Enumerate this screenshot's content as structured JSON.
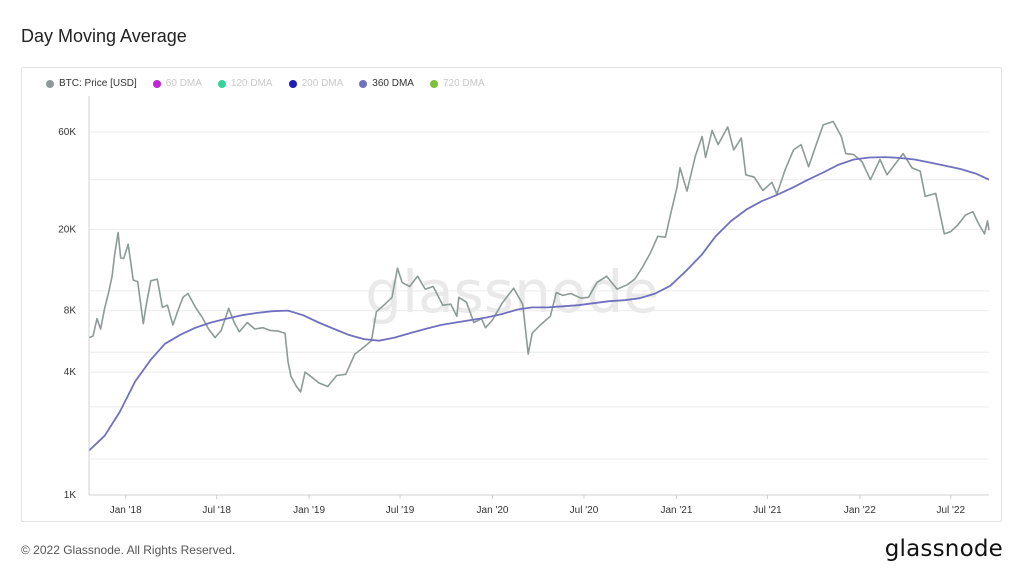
{
  "page": {
    "title": "Day Moving Average",
    "copyright": "© 2022 Glassnode. All Rights Reserved.",
    "logo": "glassnode",
    "watermark": "glassnode"
  },
  "colors": {
    "price": "#8c9a98",
    "dma60": "#c026d3",
    "dma120": "#34d399",
    "dma200": "#1d1dbf",
    "dma360": "#7070c0",
    "dma720": "#7cbf3a",
    "grid": "#ececec"
  },
  "legend": [
    {
      "label": "BTC: Price [USD]",
      "color": "#8c9a98",
      "active": true
    },
    {
      "label": "60 DMA",
      "color": "#c026d3",
      "active": false
    },
    {
      "label": "120 DMA",
      "color": "#34d399",
      "active": false
    },
    {
      "label": "200 DMA",
      "color": "#1d1dbf",
      "active": false
    },
    {
      "label": "360 DMA",
      "color": "#7070c0",
      "active": true
    },
    {
      "label": "720 DMA",
      "color": "#7cbf3a",
      "active": false
    }
  ],
  "chart_data": {
    "type": "line",
    "title": "Day Moving Average",
    "y_scale": "log",
    "ylim": [
      1000,
      90000
    ],
    "xlim": [
      "2017-10-20",
      "2022-09-15"
    ],
    "grid": true,
    "legend_position": "top-left",
    "y_ticks": [
      {
        "value": 1000,
        "label": "1K"
      },
      {
        "value": 4000,
        "label": "4K"
      },
      {
        "value": 8000,
        "label": "8K"
      },
      {
        "value": 20000,
        "label": "20K"
      },
      {
        "value": 60000,
        "label": "60K"
      }
    ],
    "y_grid_values": [
      1500,
      2700,
      5000,
      10000,
      35000
    ],
    "x_ticks": [
      {
        "date": "2018-01-01",
        "label": "Jan '18"
      },
      {
        "date": "2018-07-01",
        "label": "Jul '18"
      },
      {
        "date": "2019-01-01",
        "label": "Jan '19"
      },
      {
        "date": "2019-07-01",
        "label": "Jul '19"
      },
      {
        "date": "2020-01-01",
        "label": "Jan '20"
      },
      {
        "date": "2020-07-01",
        "label": "Jul '20"
      },
      {
        "date": "2021-01-01",
        "label": "Jan '21"
      },
      {
        "date": "2021-07-01",
        "label": "Jul '21"
      },
      {
        "date": "2022-01-01",
        "label": "Jan '22"
      },
      {
        "date": "2022-07-01",
        "label": "Jul '22"
      }
    ],
    "series": [
      {
        "name": "BTC: Price [USD]",
        "color": "#8c9a98",
        "points": [
          [
            "2017-10-20",
            5900
          ],
          [
            "2017-10-28",
            6000
          ],
          [
            "2017-11-05",
            7300
          ],
          [
            "2017-11-12",
            6500
          ],
          [
            "2017-11-20",
            8200
          ],
          [
            "2017-11-28",
            9800
          ],
          [
            "2017-12-05",
            11800
          ],
          [
            "2017-12-10",
            15000
          ],
          [
            "2017-12-17",
            19300
          ],
          [
            "2017-12-22",
            14500
          ],
          [
            "2017-12-28",
            14400
          ],
          [
            "2018-01-06",
            16900
          ],
          [
            "2018-01-16",
            11300
          ],
          [
            "2018-01-25",
            11100
          ],
          [
            "2018-02-05",
            6900
          ],
          [
            "2018-02-10",
            8300
          ],
          [
            "2018-02-20",
            11200
          ],
          [
            "2018-03-05",
            11400
          ],
          [
            "2018-03-15",
            8300
          ],
          [
            "2018-03-25",
            8500
          ],
          [
            "2018-04-05",
            6800
          ],
          [
            "2018-04-15",
            8000
          ],
          [
            "2018-04-25",
            9300
          ],
          [
            "2018-05-05",
            9700
          ],
          [
            "2018-05-20",
            8300
          ],
          [
            "2018-06-01",
            7500
          ],
          [
            "2018-06-15",
            6500
          ],
          [
            "2018-06-28",
            5900
          ],
          [
            "2018-07-10",
            6400
          ],
          [
            "2018-07-25",
            8200
          ],
          [
            "2018-08-05",
            7000
          ],
          [
            "2018-08-15",
            6300
          ],
          [
            "2018-08-31",
            7000
          ],
          [
            "2018-09-15",
            6500
          ],
          [
            "2018-10-01",
            6600
          ],
          [
            "2018-10-15",
            6400
          ],
          [
            "2018-11-01",
            6350
          ],
          [
            "2018-11-14",
            6200
          ],
          [
            "2018-11-20",
            4500
          ],
          [
            "2018-11-26",
            3800
          ],
          [
            "2018-12-07",
            3400
          ],
          [
            "2018-12-15",
            3200
          ],
          [
            "2018-12-24",
            4000
          ],
          [
            "2019-01-05",
            3800
          ],
          [
            "2019-01-20",
            3550
          ],
          [
            "2019-02-07",
            3400
          ],
          [
            "2019-02-25",
            3850
          ],
          [
            "2019-03-15",
            3900
          ],
          [
            "2019-04-02",
            4900
          ],
          [
            "2019-04-20",
            5300
          ],
          [
            "2019-05-05",
            5700
          ],
          [
            "2019-05-15",
            7900
          ],
          [
            "2019-06-01",
            8600
          ],
          [
            "2019-06-15",
            9300
          ],
          [
            "2019-06-26",
            12900
          ],
          [
            "2019-07-05",
            11000
          ],
          [
            "2019-07-20",
            10500
          ],
          [
            "2019-08-05",
            11800
          ],
          [
            "2019-08-20",
            10200
          ],
          [
            "2019-09-05",
            10500
          ],
          [
            "2019-09-24",
            8500
          ],
          [
            "2019-10-10",
            8600
          ],
          [
            "2019-10-22",
            7500
          ],
          [
            "2019-10-26",
            9300
          ],
          [
            "2019-11-10",
            8800
          ],
          [
            "2019-11-25",
            7000
          ],
          [
            "2019-12-10",
            7300
          ],
          [
            "2019-12-18",
            6600
          ],
          [
            "2020-01-01",
            7200
          ],
          [
            "2020-01-20",
            8700
          ],
          [
            "2020-02-12",
            10300
          ],
          [
            "2020-03-01",
            8600
          ],
          [
            "2020-03-12",
            4900
          ],
          [
            "2020-03-20",
            6200
          ],
          [
            "2020-04-05",
            6800
          ],
          [
            "2020-04-25",
            7500
          ],
          [
            "2020-05-07",
            9800
          ],
          [
            "2020-05-20",
            9500
          ],
          [
            "2020-06-05",
            9700
          ],
          [
            "2020-06-25",
            9200
          ],
          [
            "2020-07-10",
            9300
          ],
          [
            "2020-07-27",
            11000
          ],
          [
            "2020-08-15",
            11800
          ],
          [
            "2020-09-05",
            10200
          ],
          [
            "2020-09-25",
            10700
          ],
          [
            "2020-10-10",
            11400
          ],
          [
            "2020-10-25",
            13000
          ],
          [
            "2020-11-10",
            15300
          ],
          [
            "2020-11-25",
            18500
          ],
          [
            "2020-12-10",
            18300
          ],
          [
            "2020-12-20",
            23500
          ],
          [
            "2021-01-02",
            32000
          ],
          [
            "2021-01-08",
            40000
          ],
          [
            "2021-01-22",
            30800
          ],
          [
            "2021-02-08",
            46000
          ],
          [
            "2021-02-21",
            57000
          ],
          [
            "2021-02-28",
            45000
          ],
          [
            "2021-03-13",
            61000
          ],
          [
            "2021-03-25",
            52000
          ],
          [
            "2021-04-13",
            63500
          ],
          [
            "2021-04-25",
            49000
          ],
          [
            "2021-05-10",
            56000
          ],
          [
            "2021-05-19",
            37000
          ],
          [
            "2021-06-05",
            36000
          ],
          [
            "2021-06-22",
            31000
          ],
          [
            "2021-07-10",
            34000
          ],
          [
            "2021-07-20",
            29800
          ],
          [
            "2021-08-05",
            39000
          ],
          [
            "2021-08-22",
            49000
          ],
          [
            "2021-09-06",
            52000
          ],
          [
            "2021-09-21",
            40500
          ],
          [
            "2021-10-05",
            51000
          ],
          [
            "2021-10-20",
            65000
          ],
          [
            "2021-11-09",
            67500
          ],
          [
            "2021-11-25",
            57000
          ],
          [
            "2021-12-04",
            47000
          ],
          [
            "2021-12-20",
            46500
          ],
          [
            "2022-01-05",
            43000
          ],
          [
            "2022-01-22",
            35000
          ],
          [
            "2022-02-10",
            44000
          ],
          [
            "2022-02-24",
            37000
          ],
          [
            "2022-03-28",
            47000
          ],
          [
            "2022-04-15",
            40000
          ],
          [
            "2022-05-01",
            38500
          ],
          [
            "2022-05-11",
            29000
          ],
          [
            "2022-06-01",
            30000
          ],
          [
            "2022-06-18",
            19000
          ],
          [
            "2022-07-01",
            19500
          ],
          [
            "2022-07-15",
            21000
          ],
          [
            "2022-07-30",
            23500
          ],
          [
            "2022-08-14",
            24400
          ],
          [
            "2022-08-25",
            21400
          ],
          [
            "2022-09-06",
            19000
          ],
          [
            "2022-09-12",
            22000
          ],
          [
            "2022-09-15",
            19800
          ]
        ]
      },
      {
        "name": "360 DMA",
        "color": "#7070c0",
        "points": [
          [
            "2017-10-20",
            1650
          ],
          [
            "2017-11-20",
            1950
          ],
          [
            "2017-12-20",
            2550
          ],
          [
            "2018-01-20",
            3600
          ],
          [
            "2018-02-20",
            4600
          ],
          [
            "2018-03-20",
            5500
          ],
          [
            "2018-04-20",
            6100
          ],
          [
            "2018-05-20",
            6600
          ],
          [
            "2018-06-20",
            7000
          ],
          [
            "2018-07-20",
            7300
          ],
          [
            "2018-08-20",
            7600
          ],
          [
            "2018-09-20",
            7800
          ],
          [
            "2018-10-20",
            7950
          ],
          [
            "2018-11-20",
            8000
          ],
          [
            "2018-12-20",
            7600
          ],
          [
            "2019-01-20",
            7000
          ],
          [
            "2019-02-20",
            6500
          ],
          [
            "2019-03-20",
            6100
          ],
          [
            "2019-04-20",
            5800
          ],
          [
            "2019-05-20",
            5700
          ],
          [
            "2019-06-20",
            5900
          ],
          [
            "2019-07-20",
            6200
          ],
          [
            "2019-08-20",
            6500
          ],
          [
            "2019-09-20",
            6800
          ],
          [
            "2019-10-20",
            7000
          ],
          [
            "2019-11-20",
            7200
          ],
          [
            "2019-12-20",
            7400
          ],
          [
            "2020-01-20",
            7700
          ],
          [
            "2020-02-20",
            8100
          ],
          [
            "2020-03-20",
            8300
          ],
          [
            "2020-04-20",
            8300
          ],
          [
            "2020-05-20",
            8400
          ],
          [
            "2020-06-20",
            8500
          ],
          [
            "2020-07-20",
            8700
          ],
          [
            "2020-08-20",
            8900
          ],
          [
            "2020-09-20",
            9000
          ],
          [
            "2020-10-20",
            9200
          ],
          [
            "2020-11-20",
            9700
          ],
          [
            "2020-12-20",
            10600
          ],
          [
            "2021-01-20",
            12500
          ],
          [
            "2021-02-20",
            15000
          ],
          [
            "2021-03-20",
            18500
          ],
          [
            "2021-04-20",
            22000
          ],
          [
            "2021-05-20",
            25000
          ],
          [
            "2021-06-20",
            27500
          ],
          [
            "2021-07-20",
            29500
          ],
          [
            "2021-08-20",
            32000
          ],
          [
            "2021-09-20",
            35000
          ],
          [
            "2021-10-20",
            38000
          ],
          [
            "2021-11-20",
            41500
          ],
          [
            "2021-12-20",
            44000
          ],
          [
            "2022-01-20",
            45000
          ],
          [
            "2022-02-20",
            45200
          ],
          [
            "2022-03-20",
            44800
          ],
          [
            "2022-04-20",
            44000
          ],
          [
            "2022-05-20",
            42500
          ],
          [
            "2022-06-20",
            41000
          ],
          [
            "2022-07-20",
            39500
          ],
          [
            "2022-08-20",
            37500
          ],
          [
            "2022-09-15",
            35000
          ]
        ]
      }
    ]
  }
}
